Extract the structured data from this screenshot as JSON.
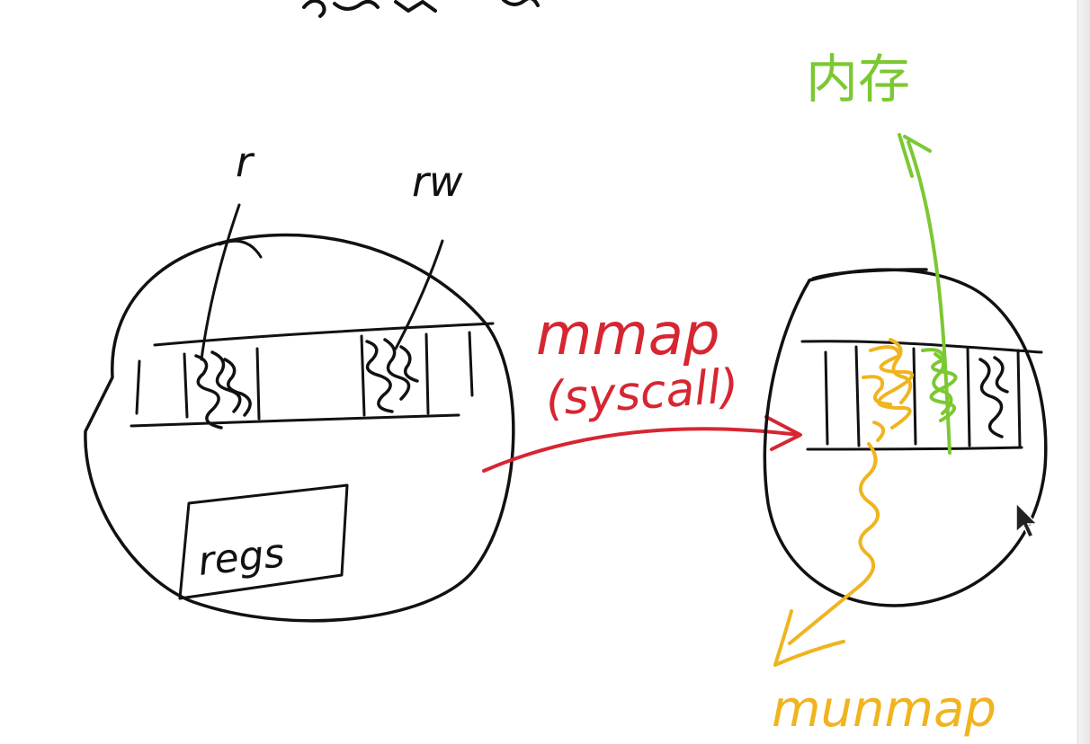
{
  "diagram": {
    "title_partial": "",
    "labels": {
      "read_only": "r",
      "read_write": "rw",
      "regs": "regs",
      "mmap": "mmap",
      "syscall": "(syscall)",
      "memory": "内存",
      "munmap": "munmap"
    },
    "colors": {
      "ink": "#111111",
      "mmap": "#d62632",
      "memory": "#7cc832",
      "munmap": "#f0b41e"
    }
  }
}
